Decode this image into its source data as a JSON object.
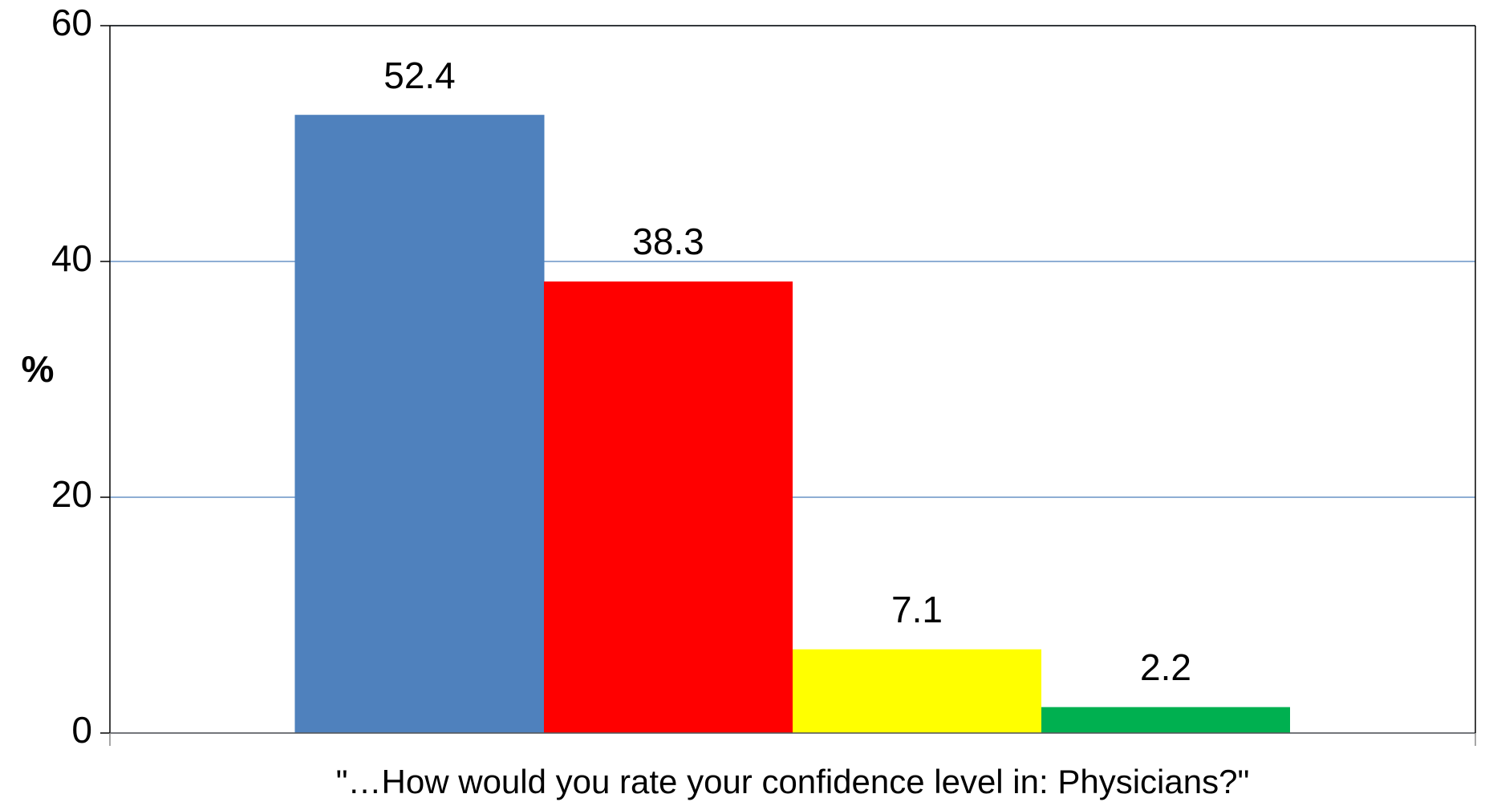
{
  "chart_data": {
    "type": "bar",
    "ylabel": "%",
    "xlabel": "\"…How would you rate your confidence level in: Physicians?\"",
    "series": [
      {
        "color": "#4f81bd",
        "values": [
          52.4
        ]
      },
      {
        "color": "#ff0000",
        "values": [
          38.3
        ]
      },
      {
        "color": "#ffff00",
        "values": [
          7.1
        ]
      },
      {
        "color": "#00b050",
        "values": [
          2.2
        ]
      }
    ],
    "ylim": [
      0,
      60
    ],
    "yticks": [
      0,
      20,
      40,
      60
    ],
    "grid": true
  }
}
